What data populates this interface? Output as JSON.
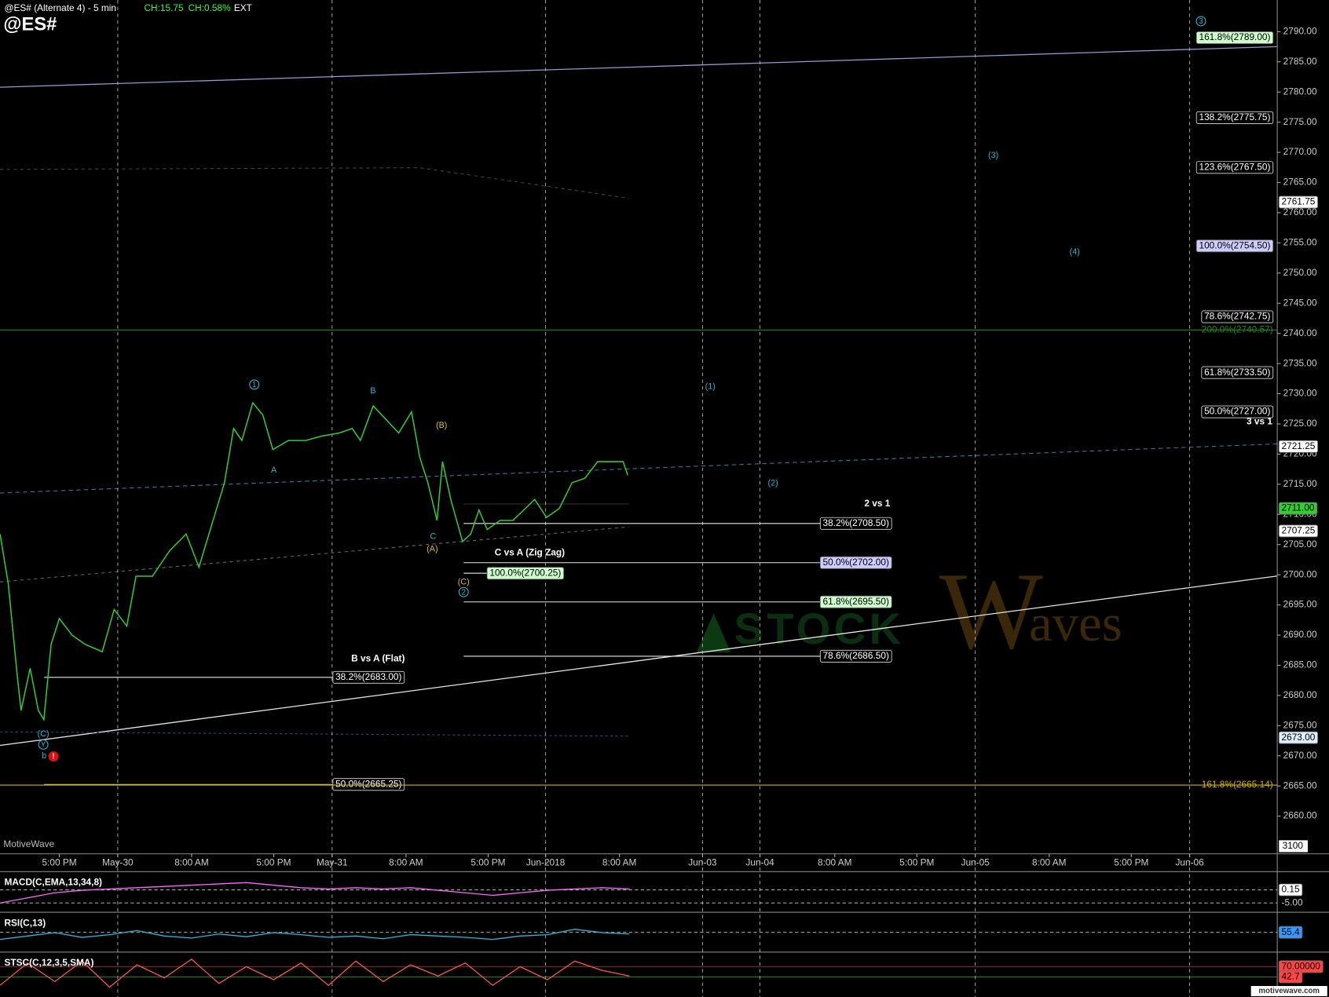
{
  "header": {
    "symbol_title": "@ES# (Alternate 4) - 5 min",
    "change": "CH:15.75",
    "change_pct": "CH:0.58%",
    "session": "EXT",
    "symbol": "@ES#"
  },
  "chart_data": {
    "type": "line",
    "x": [
      0,
      0.9,
      1.9,
      2.3,
      3.3,
      4.2,
      4.8,
      5.6,
      6.5,
      7.9,
      9.3,
      11.2,
      12.5,
      13.9,
      14.9,
      16.7,
      18.6,
      20.4,
      21.8,
      23.2,
      24.6,
      25.6,
      26.5,
      27.7,
      28.8,
      29.9,
      31.6,
      33.5,
      35.3,
      37.2,
      38.6,
      39.5,
      40.9,
      42.3,
      43.7,
      45.1,
      46,
      46.9,
      47.9,
      48.5,
      49.4,
      50.7,
      51.6,
      52.5,
      53.4,
      54.8,
      56.2,
      57.6,
      58.6,
      59.9,
      61.3,
      62.7,
      64.1,
      65.5,
      66.9,
      68.3,
      68.8
    ],
    "series": [
      {
        "name": "@ES#",
        "color": "#33cc33",
        "values": [
          2706.75,
          2698.5,
          2683,
          2677.5,
          2684.5,
          2677.5,
          2676,
          2688.5,
          2692.75,
          2690,
          2688.5,
          2687.25,
          2694.25,
          2691.5,
          2699.75,
          2699.75,
          2704,
          2706.75,
          2701.25,
          2708.25,
          2715.25,
          2724.25,
          2722.25,
          2728.5,
          2726.5,
          2720.75,
          2722.25,
          2722.25,
          2723,
          2723.5,
          2724.25,
          2722.25,
          2728,
          2725.75,
          2723.5,
          2727,
          2719.5,
          2715.25,
          2709,
          2718.75,
          2712.5,
          2705.5,
          2706.75,
          2710.75,
          2707.5,
          2709,
          2709,
          2711,
          2712.5,
          2709.5,
          2711,
          2715.25,
          2716,
          2718.75,
          2718.75,
          2718.75,
          2716.5
        ]
      }
    ],
    "xlim": [
      0,
      140
    ],
    "xticks": [
      {
        "value": 6.5,
        "label": "5:00 PM"
      },
      {
        "value": 12.9,
        "label": "May-30"
      },
      {
        "value": 21,
        "label": "8:00 AM"
      },
      {
        "value": 30,
        "label": "5:00 PM"
      },
      {
        "value": 36.4,
        "label": "May-31"
      },
      {
        "value": 44.5,
        "label": "8:00 AM"
      },
      {
        "value": 53.5,
        "label": "5:00 PM"
      },
      {
        "value": 59.8,
        "label": "Jun-2018"
      },
      {
        "value": 67.9,
        "label": "8:00 AM"
      },
      {
        "value": 77,
        "label": "Jun-03"
      },
      {
        "value": 83.3,
        "label": "Jun-04"
      },
      {
        "value": 91.5,
        "label": "8:00 AM"
      },
      {
        "value": 100.5,
        "label": "5:00 PM"
      },
      {
        "value": 106.9,
        "label": "Jun-05"
      },
      {
        "value": 115,
        "label": "8:00 AM"
      },
      {
        "value": 124,
        "label": "5:00 PM"
      },
      {
        "value": 130.4,
        "label": "Jun-06"
      }
    ],
    "ylim": [
      2653.75,
      2795.25
    ],
    "yticks": [
      {
        "value": 2660,
        "label": "2660.00"
      },
      {
        "value": 2665,
        "label": "2665.00"
      },
      {
        "value": 2670,
        "label": "2670.00"
      },
      {
        "value": 2675,
        "label": "2675.00"
      },
      {
        "value": 2680,
        "label": "2680.00"
      },
      {
        "value": 2685,
        "label": "2685.00"
      },
      {
        "value": 2690,
        "label": "2690.00"
      },
      {
        "value": 2695,
        "label": "2695.00"
      },
      {
        "value": 2700,
        "label": "2700.00"
      },
      {
        "value": 2705,
        "label": "2705.00"
      },
      {
        "value": 2710,
        "label": "2710.00"
      },
      {
        "value": 2715,
        "label": "2715.00"
      },
      {
        "value": 2720,
        "label": "2720.00"
      },
      {
        "value": 2725,
        "label": "2725.00"
      },
      {
        "value": 2730,
        "label": "2730.00"
      },
      {
        "value": 2735,
        "label": "2735.00"
      },
      {
        "value": 2740,
        "label": "2740.00"
      },
      {
        "value": 2745,
        "label": "2745.00"
      },
      {
        "value": 2750,
        "label": "2750.00"
      },
      {
        "value": 2755,
        "label": "2755.00"
      },
      {
        "value": 2760,
        "label": "2760.00"
      },
      {
        "value": 2765,
        "label": "2765.00"
      },
      {
        "value": 2770,
        "label": "2770.00"
      },
      {
        "value": 2775,
        "label": "2775.00"
      },
      {
        "value": 2780,
        "label": "2780.00"
      },
      {
        "value": 2785,
        "label": "2785.00"
      },
      {
        "value": 2790,
        "label": "2790.00"
      }
    ],
    "grid": true,
    "price_tags": [
      {
        "value": 2761.75,
        "label": "2761.75",
        "fill": "#ffffff"
      },
      {
        "value": 2721.25,
        "label": "2721.25",
        "fill": "#ffffff"
      },
      {
        "value": 2711,
        "label": "2711.00",
        "fill": "#33cc33"
      },
      {
        "value": 2707.25,
        "label": "2707.25",
        "fill": "#ffffff"
      },
      {
        "value": 2673,
        "label": "2673.00",
        "fill": "#ddeeff"
      }
    ],
    "fib_levels": [
      {
        "value": 2789,
        "label": "161.8%(2789.00)",
        "fill": "#ccffcc"
      },
      {
        "value": 2775.75,
        "label": "138.2%(2775.75)",
        "fill": "#000000"
      },
      {
        "value": 2767.5,
        "label": "123.6%(2767.50)",
        "fill": "#000000"
      },
      {
        "value": 2754.5,
        "label": "100.0%(2754.50)",
        "fill": "#ccccff"
      },
      {
        "value": 2742.75,
        "label": "78.6%(2742.75)",
        "fill": "#000000"
      },
      {
        "value": 2733.5,
        "label": "61.8%(2733.50)",
        "fill": "#000000"
      },
      {
        "value": 2727,
        "label": "50.0%(2727.00)",
        "fill": "#000000"
      },
      {
        "value": 2708.5,
        "label": "38.2%(2708.50)",
        "fill": "#000000"
      },
      {
        "value": 2702,
        "label": "50.0%(2702.00)",
        "fill": "#ccccff"
      },
      {
        "value": 2695.5,
        "label": "61.8%(2695.50)",
        "fill": "#ccffcc"
      },
      {
        "value": 2686.5,
        "label": "78.6%(2686.50)",
        "fill": "#000000"
      },
      {
        "value": 2700.25,
        "label": "100.0%(2700.25)",
        "fill": "#ccffcc"
      },
      {
        "value": 2683,
        "label": "38.2%(2683.00)",
        "fill": "#000000"
      },
      {
        "value": 2665.25,
        "label": "50.0%(2665.25)",
        "fill": "#000000"
      },
      {
        "value": 2740.57,
        "label": "200.0%(2740.57)",
        "color": "#1f8a1f"
      },
      {
        "value": 2665.14,
        "label": "161.8%(2665.14)",
        "color": "#d4b000"
      }
    ],
    "wave_labels": [
      "1",
      "A",
      "B",
      "C",
      "(A)",
      "(B)",
      "(C)",
      "2",
      "(1)",
      "(2)",
      "(3)",
      "(4)",
      "3",
      "(C)",
      "Y",
      "b",
      "!"
    ],
    "notes": [
      "2 vs 1",
      "3 vs 1",
      "C vs A (Zig Zag)",
      "B vs A (Flat)"
    ],
    "volume_scale": "3100",
    "source_label": "MotiveWave",
    "watermark": [
      "STOCK",
      "W",
      "aves"
    ]
  },
  "indicators": [
    {
      "title": "MACD(C,EMA,13,34,8)",
      "ylim": [
        -8,
        6
      ],
      "ticks": [
        {
          "value": 0.15,
          "label": "0.15",
          "fill": "#ffffff"
        },
        {
          "value": -5,
          "label": "-5.00"
        }
      ],
      "x": [
        0,
        3,
        6,
        9,
        12,
        15,
        18,
        21,
        24,
        27,
        30,
        33,
        36,
        39,
        42,
        45,
        48,
        51,
        54,
        57,
        60,
        63,
        66,
        69
      ],
      "series": [
        {
          "color": "#ff66ff",
          "values": [
            -5,
            -3,
            -1,
            0,
            0.5,
            1,
            1.5,
            2,
            2.5,
            3,
            2,
            1,
            0.5,
            1,
            0.5,
            1,
            0,
            -1,
            -2,
            -1,
            0,
            0.5,
            1,
            0.5
          ]
        }
      ]
    },
    {
      "title": "RSI(C,13)",
      "ylim": [
        30,
        80
      ],
      "ticks": [
        {
          "value": 55.4,
          "label": "55.4",
          "fill": "#3399ff"
        }
      ],
      "x": [
        0,
        3,
        6,
        9,
        12,
        15,
        18,
        21,
        24,
        27,
        30,
        33,
        36,
        39,
        42,
        45,
        48,
        51,
        54,
        57,
        60,
        63,
        66,
        69
      ],
      "series": [
        {
          "color": "#2ab7e6",
          "values": [
            45,
            50,
            55,
            48,
            52,
            58,
            50,
            47,
            53,
            49,
            55,
            52,
            48,
            50,
            46,
            52,
            50,
            48,
            45,
            50,
            52,
            60,
            55,
            53
          ]
        }
      ]
    },
    {
      "title": "STSC(C,12,3,5,SMA)",
      "ylim": [
        0,
        100
      ],
      "ticks": [
        {
          "value": 70,
          "label": "70.00000",
          "fill": "#ff4444"
        },
        {
          "value": 42.7,
          "label": "42.7",
          "fill": "#ff4444"
        }
      ],
      "x": [
        0,
        3,
        6,
        9,
        12,
        15,
        18,
        21,
        24,
        27,
        30,
        33,
        36,
        39,
        42,
        45,
        48,
        51,
        54,
        57,
        60,
        63,
        66,
        69
      ],
      "series": [
        {
          "color": "#ff5555",
          "values": [
            20,
            80,
            30,
            85,
            15,
            75,
            40,
            90,
            25,
            70,
            35,
            80,
            20,
            85,
            30,
            75,
            45,
            80,
            20,
            70,
            35,
            85,
            60,
            45
          ]
        }
      ]
    }
  ],
  "footer_logo": "motivewave.com"
}
